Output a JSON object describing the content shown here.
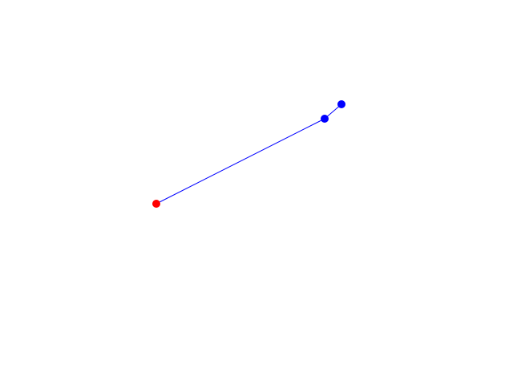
{
  "nodes": [
    {
      "id": "start",
      "color": "#ff0000"
    },
    {
      "id": "mid",
      "color": "#0000ff"
    },
    {
      "id": "end",
      "color": "#0000ff"
    }
  ],
  "edges": [
    {
      "from": "start",
      "to": "mid",
      "color": "#0000ff"
    },
    {
      "from": "mid",
      "to": "end",
      "color": "#0000ff"
    }
  ]
}
